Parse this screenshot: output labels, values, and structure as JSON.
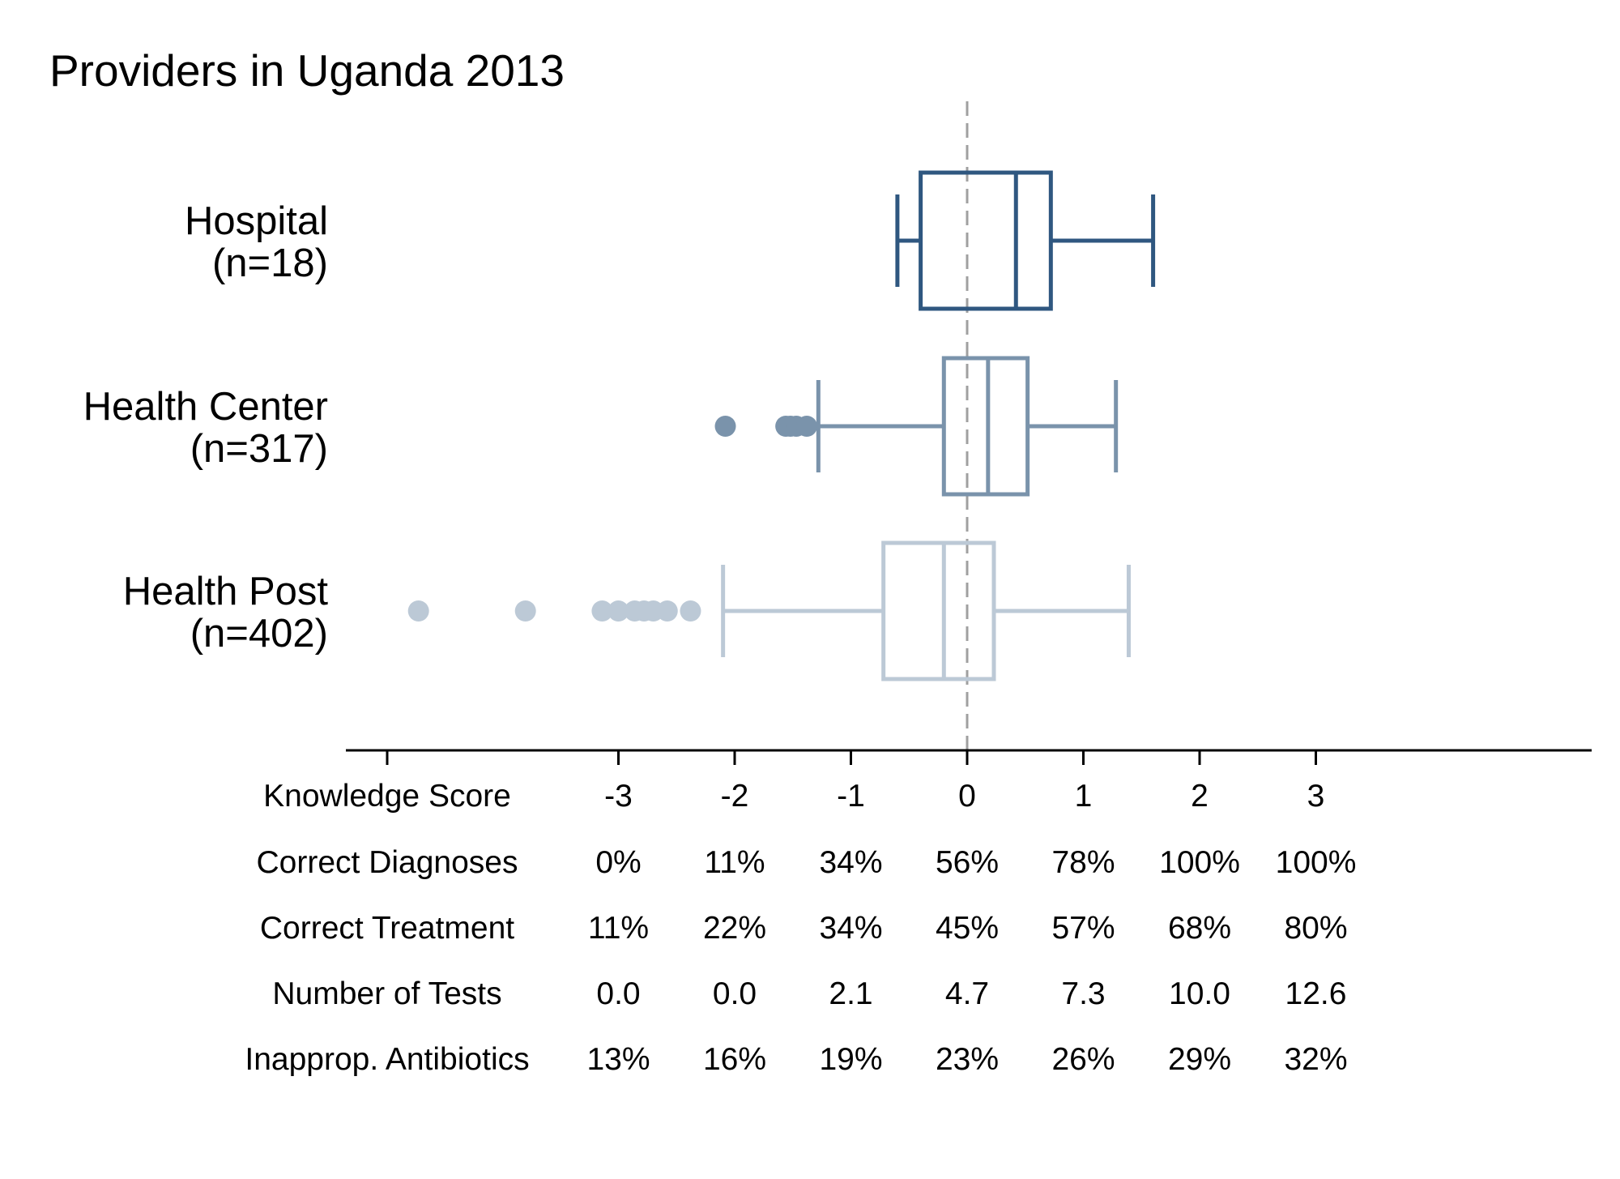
{
  "chart_data": {
    "type": "box",
    "title": "Providers in Uganda 2013",
    "xlim": [
      -3.5,
      5.3
    ],
    "reference_line": 0,
    "categories": [
      {
        "name": "Hospital",
        "n_label": "(n=18)",
        "color": "#2f5780",
        "min": -0.6,
        "q1": -0.4,
        "median": 0.42,
        "q3": 0.72,
        "max": 1.6,
        "outliers": []
      },
      {
        "name": "Health Center",
        "n_label": "(n=317)",
        "color": "#7a93ab",
        "min": -1.28,
        "q1": -0.2,
        "median": 0.18,
        "q3": 0.52,
        "max": 1.28,
        "outliers": [
          -2.08,
          -1.56,
          -1.52,
          -1.47,
          -1.38
        ]
      },
      {
        "name": "Health Post",
        "n_label": "(n=402)",
        "color": "#bcc9d6",
        "min": -2.1,
        "q1": -0.72,
        "median": -0.2,
        "q3": 0.23,
        "max": 1.39,
        "outliers": [
          -2.38,
          -2.58,
          -2.7,
          -2.78,
          -2.86,
          -3.0,
          -3.14,
          -3.8,
          -4.72
        ]
      }
    ],
    "ticks": [
      -3,
      -2,
      -1,
      0,
      1,
      2,
      3
    ],
    "table": {
      "rows": [
        {
          "label": "Knowledge Score",
          "values": [
            "-3",
            "-2",
            "-1",
            "0",
            "1",
            "2",
            "3"
          ]
        },
        {
          "label": "Correct Diagnoses",
          "values": [
            "0%",
            "11%",
            "34%",
            "56%",
            "78%",
            "100%",
            "100%"
          ]
        },
        {
          "label": "Correct Treatment",
          "values": [
            "11%",
            "22%",
            "34%",
            "45%",
            "57%",
            "68%",
            "80%"
          ]
        },
        {
          "label": "Number of Tests",
          "values": [
            "0.0",
            "0.0",
            "2.1",
            "4.7",
            "7.3",
            "10.0",
            "12.6"
          ]
        },
        {
          "label": "Inapprop. Antibiotics",
          "values": [
            "13%",
            "16%",
            "19%",
            "23%",
            "26%",
            "29%",
            "32%"
          ]
        }
      ]
    }
  }
}
